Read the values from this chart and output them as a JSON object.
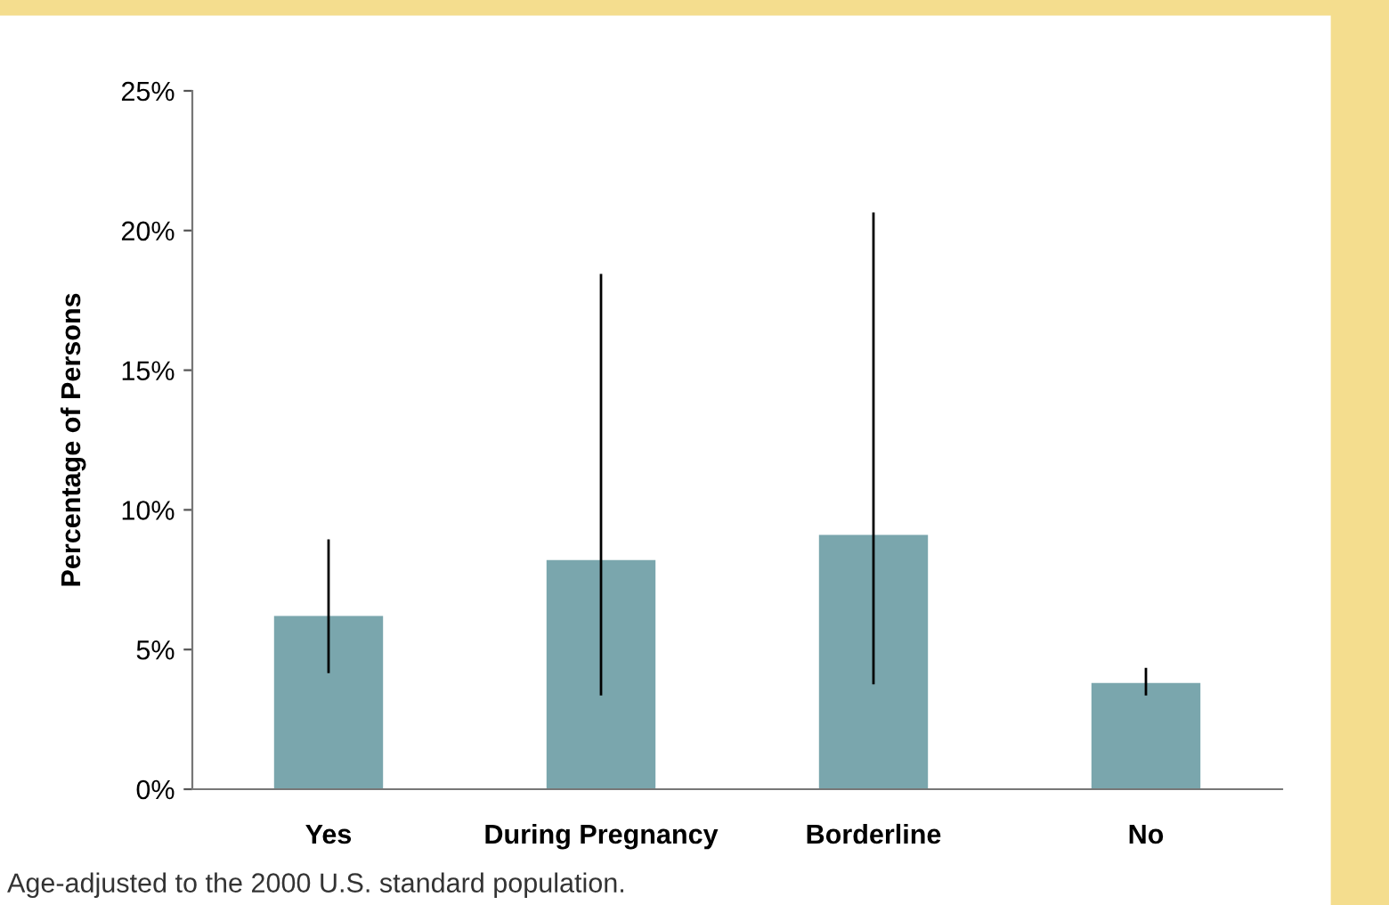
{
  "chart_data": {
    "type": "bar",
    "ylabel": "Percentage of Persons",
    "categories": [
      "Yes",
      "During Pregnancy",
      "Borderline",
      "No"
    ],
    "values": [
      6.2,
      8.2,
      9.1,
      3.8
    ],
    "color": "#7aa6ad",
    "errors": [
      [
        4.2,
        8.9
      ],
      [
        3.4,
        18.4
      ],
      [
        3.8,
        20.6
      ],
      [
        3.4,
        4.3
      ]
    ],
    "ylim": [
      0,
      25
    ],
    "yticks": [
      {
        "value": 0,
        "label": "0%"
      },
      {
        "value": 5,
        "label": "5%"
      },
      {
        "value": 10,
        "label": "10%"
      },
      {
        "value": 15,
        "label": "15%"
      },
      {
        "value": 20,
        "label": "20%"
      },
      {
        "value": 25,
        "label": "25%"
      }
    ],
    "grid": false,
    "annotations": [
      "Age-adjusted to the 2000 U.S. standard population."
    ]
  }
}
